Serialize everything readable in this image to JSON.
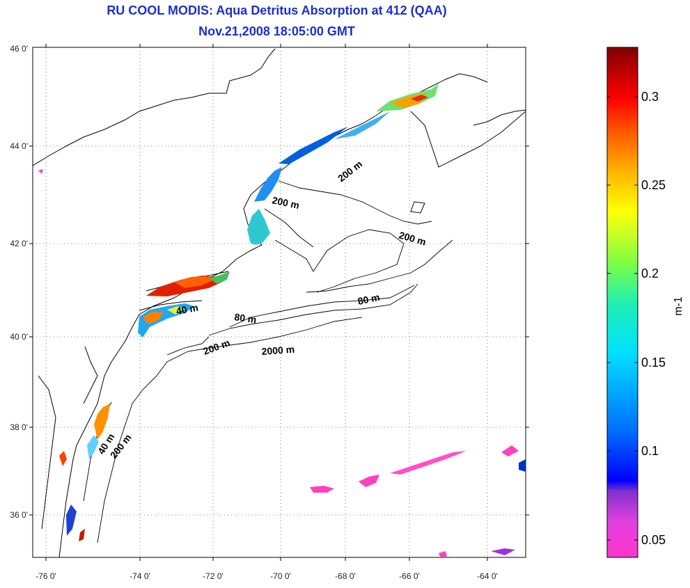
{
  "title": "RU COOL MODIS: Aqua Detritus Absorption at 412 (QAA)",
  "subtitle": "Nov.21,2008 18:05:00 GMT",
  "map": {
    "lon_ticks": [
      "-76 0'",
      "-74 0'",
      "-72 0'",
      "-70 0'",
      "-68 0'",
      "-66 0'",
      "-64 0'"
    ],
    "lat_ticks": [
      "46 0'",
      "44 0'",
      "42 0'",
      "40 0'",
      "38 0'",
      "36 0'"
    ],
    "contour_labels": [
      "200 m",
      "200 m",
      "200 m",
      "80 m",
      "40 m",
      "80 m",
      "200 m",
      "2000 m",
      "40 m",
      "200 m"
    ]
  },
  "colorbar": {
    "ticks": [
      "0.3",
      "0.25",
      "0.2",
      "0.15",
      "0.1",
      "0.05"
    ],
    "unit_label": "m-1"
  }
}
